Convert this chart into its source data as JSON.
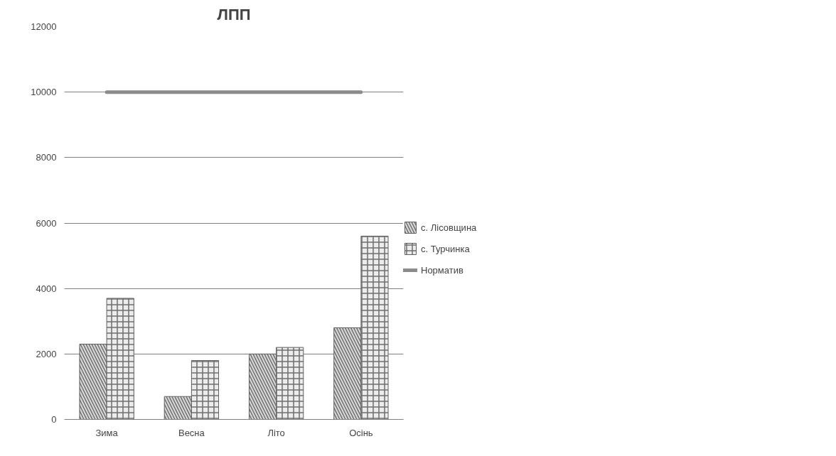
{
  "chart_data": {
    "type": "bar",
    "title": "ЛПП",
    "categories": [
      "Зима",
      "Весна",
      "Літо",
      "Осінь"
    ],
    "series": [
      {
        "name": "с. Лісовщина",
        "color": "#d9d9d9",
        "values": [
          2300,
          700,
          2000,
          2800
        ]
      },
      {
        "name": "с. Турчинка",
        "color": "#ececec",
        "values": [
          3700,
          1800,
          2200,
          5600
        ]
      },
      {
        "name": "Норматив",
        "type": "line",
        "color": "#8c8c8c",
        "values": [
          10000,
          10000,
          10000,
          10000
        ]
      }
    ],
    "ylim": [
      0,
      12000
    ],
    "yticks": [
      0,
      2000,
      4000,
      6000,
      8000,
      10000,
      12000
    ],
    "grid": "y",
    "legend": "right"
  }
}
